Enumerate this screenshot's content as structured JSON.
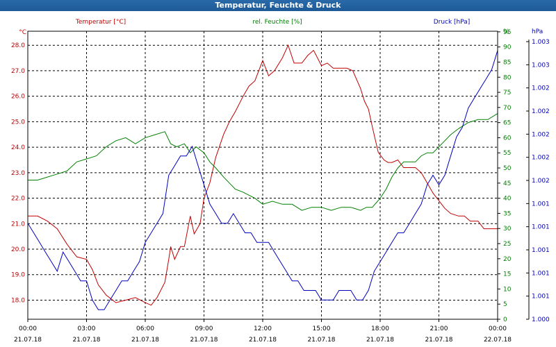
{
  "window": {
    "title": "Temperatur, Feuchte & Druck"
  },
  "colors": {
    "temperature": "#c00000",
    "humidity": "#008000",
    "pressure": "#0000c0",
    "grid": "#000000",
    "frame": "#000000"
  },
  "chart_data": {
    "type": "line",
    "title": "Temperatur, Feuchte & Druck",
    "x_ticks": [
      {
        "time": "00:00",
        "date": "21.07.18"
      },
      {
        "time": "03:00",
        "date": "21.07.18"
      },
      {
        "time": "06:00",
        "date": "21.07.18"
      },
      {
        "time": "09:00",
        "date": "21.07.18"
      },
      {
        "time": "12:00",
        "date": "21.07.18"
      },
      {
        "time": "15:00",
        "date": "21.07.18"
      },
      {
        "time": "18:00",
        "date": "21.07.18"
      },
      {
        "time": "21:00",
        "date": "21.07.18"
      },
      {
        "time": "00:00",
        "date": "22.07.18"
      }
    ],
    "xlim_hours": [
      0,
      24
    ],
    "axes": {
      "temperature": {
        "label": "Temperatur [°C]",
        "unit": "°C",
        "ylim": [
          17.25,
          28.55
        ],
        "ticks": [
          "28.0",
          "27.0",
          "26.0",
          "25.0",
          "24.0",
          "23.0",
          "22.0",
          "21.0",
          "20.0",
          "19.0",
          "18.0"
        ]
      },
      "humidity": {
        "label": "rel. Feuchte [%]",
        "unit": "%",
        "ylim": [
          0,
          95.2
        ],
        "ticks": [
          "95",
          "90",
          "85",
          "80",
          "75",
          "70",
          "65",
          "60",
          "55",
          "50",
          "45",
          "40",
          "35",
          "30",
          "25",
          "20",
          "15",
          "10",
          "5",
          "0"
        ]
      },
      "pressure": {
        "label": "Druck [hPa]",
        "unit": "hPa",
        "ylim": [
          1000.0,
          1003.0
        ],
        "ticks": [
          "1.003",
          "1.003",
          "1.002",
          "1.002",
          "1.002",
          "1.002",
          "1.002",
          "1.001",
          "1.001",
          "1.001",
          "1.001",
          "1.001",
          "1.000"
        ]
      }
    },
    "series": [
      {
        "name": "Temperatur [°C]",
        "axis": "temperature",
        "x": [
          0,
          0.5,
          1,
          1.5,
          2,
          2.5,
          3,
          3.3,
          3.6,
          4,
          4.5,
          5,
          5.5,
          6,
          6.3,
          6.6,
          7,
          7.2,
          7.3,
          7.5,
          7.8,
          8,
          8.3,
          8.5,
          8.8,
          9,
          9.3,
          9.6,
          10,
          10.3,
          10.6,
          11,
          11.3,
          11.6,
          12,
          12.3,
          12.6,
          13,
          13.3,
          13.6,
          14,
          14.3,
          14.6,
          15,
          15.3,
          15.6,
          16,
          16.3,
          16.6,
          17,
          17.2,
          17.4,
          17.6,
          17.9,
          18.2,
          18.4,
          18.6,
          18.9,
          19.2,
          19.5,
          19.8,
          20.1,
          20.4,
          20.7,
          21,
          21.3,
          21.6,
          22,
          22.3,
          22.6,
          23,
          23.3,
          23.6,
          24
        ],
        "y": [
          21.3,
          21.3,
          21.1,
          20.8,
          20.2,
          19.7,
          19.6,
          19.2,
          18.6,
          18.2,
          17.9,
          18.0,
          18.1,
          17.9,
          17.8,
          18.1,
          18.7,
          19.6,
          20.1,
          19.6,
          20.1,
          20.1,
          21.3,
          20.6,
          21.0,
          22.0,
          22.6,
          23.6,
          24.5,
          25.0,
          25.4,
          26.0,
          26.4,
          26.6,
          27.4,
          26.8,
          27.0,
          27.5,
          28.0,
          27.3,
          27.3,
          27.6,
          27.8,
          27.2,
          27.3,
          27.1,
          27.1,
          27.1,
          27.0,
          26.3,
          25.8,
          25.5,
          24.8,
          23.8,
          23.5,
          23.4,
          23.4,
          23.5,
          23.2,
          23.2,
          23.2,
          23.0,
          22.6,
          22.2,
          21.9,
          21.6,
          21.4,
          21.3,
          21.3,
          21.1,
          21.1,
          20.8,
          20.8,
          20.8
        ]
      },
      {
        "name": "rel. Feuchte [%]",
        "axis": "humidity",
        "x": [
          0,
          0.5,
          1,
          1.5,
          2,
          2.5,
          3,
          3.5,
          4,
          4.5,
          5,
          5.5,
          6,
          6.5,
          7,
          7.3,
          7.6,
          8,
          8.3,
          8.6,
          9,
          9.3,
          9.6,
          10,
          10.3,
          10.6,
          11,
          11.3,
          11.6,
          12,
          12.5,
          13,
          13.5,
          14,
          14.5,
          15,
          15.5,
          16,
          16.5,
          17,
          17.3,
          17.6,
          18,
          18.3,
          18.6,
          18.9,
          19.2,
          19.5,
          19.8,
          20.1,
          20.4,
          20.7,
          21,
          21.3,
          21.6,
          22,
          22.5,
          23,
          23.5,
          24
        ],
        "y": [
          46,
          46,
          47,
          48,
          49,
          52,
          53,
          54,
          57,
          59,
          60,
          58,
          60,
          61,
          62,
          58,
          57,
          58,
          55,
          57,
          55,
          52,
          50,
          47,
          45,
          43,
          42,
          41,
          40,
          38,
          39,
          38,
          38,
          36,
          37,
          37,
          36,
          37,
          37,
          36,
          37,
          37,
          40,
          43,
          47,
          50,
          52,
          52,
          52,
          54,
          55,
          55,
          57,
          59,
          61,
          63,
          65,
          66,
          66,
          68
        ]
      },
      {
        "name": "Druck [hPa]",
        "axis": "pressure",
        "x": [
          0,
          0.3,
          0.6,
          0.9,
          1.2,
          1.5,
          1.8,
          2.1,
          2.4,
          2.7,
          3,
          3.3,
          3.6,
          3.9,
          4.2,
          4.5,
          4.8,
          5.1,
          5.4,
          5.7,
          6,
          6.3,
          6.6,
          6.9,
          7.2,
          7.5,
          7.8,
          8.1,
          8.4,
          8.7,
          9,
          9.3,
          9.6,
          9.9,
          10.2,
          10.5,
          10.8,
          11.1,
          11.4,
          11.7,
          12,
          12.3,
          12.6,
          12.9,
          13.2,
          13.5,
          13.8,
          14.1,
          14.4,
          14.7,
          15,
          15.3,
          15.6,
          15.9,
          16.2,
          16.5,
          16.8,
          17.1,
          17.4,
          17.7,
          18,
          18.3,
          18.6,
          18.9,
          19.2,
          19.5,
          19.8,
          20.1,
          20.4,
          20.7,
          21,
          21.3,
          21.6,
          21.9,
          22.2,
          22.5,
          22.8,
          23.1,
          23.4,
          23.7,
          24
        ],
        "y": [
          1001.0,
          1000.9,
          1000.8,
          1000.7,
          1000.6,
          1000.5,
          1000.7,
          1000.6,
          1000.5,
          1000.4,
          1000.4,
          1000.2,
          1000.1,
          1000.1,
          1000.2,
          1000.3,
          1000.4,
          1000.4,
          1000.5,
          1000.6,
          1000.8,
          1000.9,
          1001.0,
          1001.1,
          1001.5,
          1001.6,
          1001.7,
          1001.7,
          1001.8,
          1001.6,
          1001.4,
          1001.2,
          1001.1,
          1001.0,
          1001.0,
          1001.1,
          1001.0,
          1000.9,
          1000.9,
          1000.8,
          1000.8,
          1000.8,
          1000.7,
          1000.6,
          1000.5,
          1000.4,
          1000.4,
          1000.3,
          1000.3,
          1000.3,
          1000.2,
          1000.2,
          1000.2,
          1000.3,
          1000.3,
          1000.3,
          1000.2,
          1000.2,
          1000.3,
          1000.5,
          1000.6,
          1000.7,
          1000.8,
          1000.9,
          1000.9,
          1001.0,
          1001.1,
          1001.2,
          1001.4,
          1001.5,
          1001.4,
          1001.5,
          1001.7,
          1001.9,
          1002.0,
          1002.2,
          1002.3,
          1002.4,
          1002.5,
          1002.6,
          1002.8
        ]
      }
    ]
  }
}
